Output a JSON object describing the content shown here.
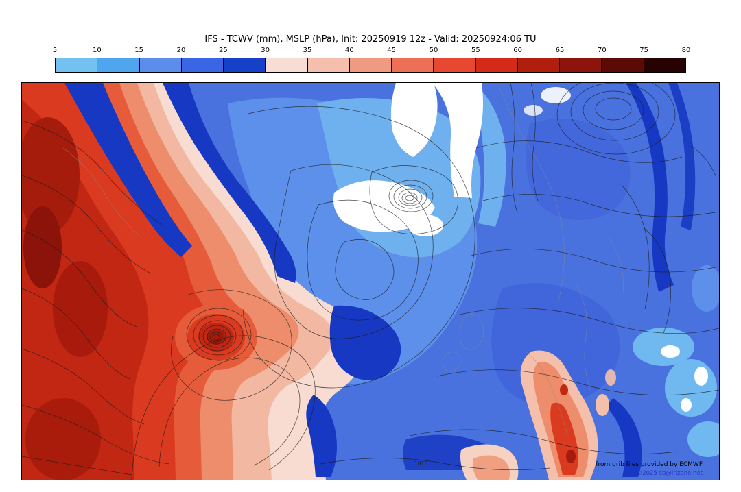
{
  "title": "IFS - TCWV (mm), MSLP (hPa), Init: 20250919 12z - Valid: 20250924:06 TU",
  "colorbar": {
    "unit": "mm",
    "ticks": [
      "5",
      "10",
      "15",
      "20",
      "25",
      "30",
      "35",
      "40",
      "45",
      "50",
      "55",
      "60",
      "65",
      "70",
      "75",
      "80"
    ],
    "colors": [
      "#72c1f0",
      "#4fa6ee",
      "#5c8cec",
      "#3a66e6",
      "#1640c8",
      "#f8ddd4",
      "#f5bfad",
      "#f19a82",
      "#ed7056",
      "#e84830",
      "#d62a18",
      "#b21e0e",
      "#8c140a",
      "#5c0a05",
      "#260302"
    ]
  },
  "map": {
    "contour_labels": [
      "1015"
    ],
    "attribution_line1": "from grib files provided by ECMWF",
    "attribution_line2": "©2025 sb@irizone.net",
    "field_colors": {
      "base_blue": "#4a72df",
      "dark_blue": "#1638c2",
      "light_blue": "#6fb0ef",
      "light_pink": "#f8dcd2",
      "strong_red": "#da3b20",
      "dark_red": "#a51b0c"
    }
  }
}
